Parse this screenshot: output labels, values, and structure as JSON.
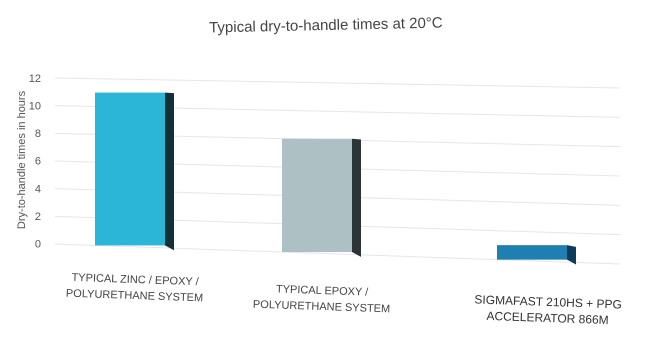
{
  "chart_data": {
    "type": "bar",
    "title": "Typical dry-to-handle times at 20°C",
    "ylabel": "Dry-to-handle times in hours",
    "xlabel": "",
    "ylim": [
      0,
      12
    ],
    "yticks": [
      "0",
      "2",
      "4",
      "6",
      "8",
      "10",
      "12"
    ],
    "categories": [
      "TYPICAL ZINC / EPOXY / POLYURETHANE SYSTEM",
      "TYPICAL EPOXY / POLYURETHANE SYSTEM",
      "SIGMAFAST 210HS + PPG ACCELERATOR 866M"
    ],
    "category_lines": [
      [
        "TYPICAL ZINC / EPOXY /",
        "POLYURETHANE SYSTEM"
      ],
      [
        "TYPICAL EPOXY /",
        "POLYURETHANE SYSTEM"
      ],
      [
        "SIGMAFAST 210HS + PPG",
        "ACCELERATOR 866M"
      ]
    ],
    "values": [
      11,
      8,
      1
    ],
    "colors": [
      "#2bb6d8",
      "#adc0c3",
      "#1f7fb0"
    ],
    "side_colors": [
      "#10303a",
      "#2d3438",
      "#0f3b58"
    ],
    "grid": true
  }
}
